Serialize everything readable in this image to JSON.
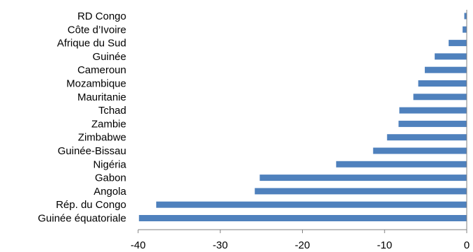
{
  "chart_data": {
    "type": "bar",
    "orientation": "horizontal",
    "title": "",
    "categories": [
      "RD Congo",
      "Côte d’Ivoire",
      "Afrique du Sud",
      "Guinée",
      "Cameroun",
      "Mozambique",
      "Mauritanie",
      "Tchad",
      "Zambie",
      "Zimbabwe",
      "Guinée-Bissau",
      "Nigéria",
      "Gabon",
      "Angola",
      "Rép. du Congo",
      "Guinée équatoriale"
    ],
    "values": [
      -0.3,
      -0.5,
      -2.2,
      -3.9,
      -5.1,
      -5.9,
      -6.5,
      -8.2,
      -8.3,
      -9.7,
      -11.4,
      -15.9,
      -25.2,
      -25.8,
      -37.8,
      -39.9
    ],
    "xlim": [
      -40,
      0
    ],
    "xticks": [
      "-40",
      "-30",
      "-20",
      "-10",
      "0"
    ],
    "grid": false,
    "colors": {
      "bar": "#4f81bd",
      "axis": "#808080"
    }
  }
}
